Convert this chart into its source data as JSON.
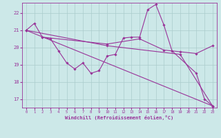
{
  "background_color": "#cce8e8",
  "grid_color": "#aacccc",
  "line_color": "#993399",
  "xlabel": "Windchill (Refroidissement éolien,°C)",
  "xlim": [
    -0.5,
    23.5
  ],
  "ylim": [
    16.5,
    22.6
  ],
  "yticks": [
    17,
    18,
    19,
    20,
    21,
    22
  ],
  "xticks": [
    0,
    1,
    2,
    3,
    4,
    5,
    6,
    7,
    8,
    9,
    10,
    11,
    12,
    13,
    14,
    15,
    16,
    17,
    18,
    19,
    20,
    21,
    22,
    23
  ],
  "series": [
    {
      "comment": "jagged line - zigzag through all points",
      "x": [
        0,
        1,
        2,
        3,
        4,
        5,
        6,
        7,
        8,
        9,
        10,
        11,
        12,
        13,
        14,
        15,
        16,
        17,
        18,
        21,
        22,
        23
      ],
      "y": [
        21.0,
        21.4,
        20.6,
        20.5,
        19.8,
        19.1,
        18.75,
        19.1,
        18.5,
        18.65,
        19.5,
        19.6,
        20.55,
        20.6,
        20.6,
        22.2,
        22.5,
        21.3,
        19.8,
        18.5,
        17.0,
        16.6
      ]
    },
    {
      "comment": "nearly straight line from top-left to bottom-right (steepest descent)",
      "x": [
        0,
        23
      ],
      "y": [
        21.0,
        16.6
      ]
    },
    {
      "comment": "second straight line, slightly higher, less steep",
      "x": [
        0,
        10,
        19,
        23
      ],
      "y": [
        21.0,
        20.1,
        19.6,
        16.6
      ]
    },
    {
      "comment": "top flat-ish line from x=2 going nearly horizontal to x=19, then drops",
      "x": [
        2,
        10,
        14,
        17,
        19,
        21,
        23
      ],
      "y": [
        20.6,
        20.2,
        20.5,
        19.85,
        19.75,
        19.65,
        20.1
      ]
    }
  ]
}
